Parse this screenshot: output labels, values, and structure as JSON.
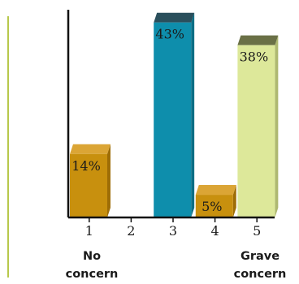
{
  "chart_data": {
    "type": "bar",
    "categories": [
      "1",
      "2",
      "3",
      "4",
      "5"
    ],
    "values": [
      14,
      0,
      43,
      5,
      38
    ],
    "data_labels": [
      "14%",
      "",
      "43%",
      "5%",
      "38%"
    ],
    "ylim": [
      0,
      45
    ],
    "grid": false,
    "end_labels": {
      "left": [
        "No",
        "concern"
      ],
      "right": [
        "Grave",
        "concern"
      ]
    },
    "colors": {
      "bar_front": [
        "#c8900e",
        "#c8900e",
        "#0e8eac",
        "#c8900e",
        "#dde89a"
      ],
      "bar_side": [
        "#9e6d06",
        "#9e6d06",
        "#0b6f86",
        "#9e6d06",
        "#aeb871"
      ],
      "bar_top": [
        "#dba535",
        "#dba535",
        "#2a4f5c",
        "#dba535",
        "#6a7046"
      ],
      "axis": "#111111",
      "accent_line": "#b7c84a"
    }
  }
}
